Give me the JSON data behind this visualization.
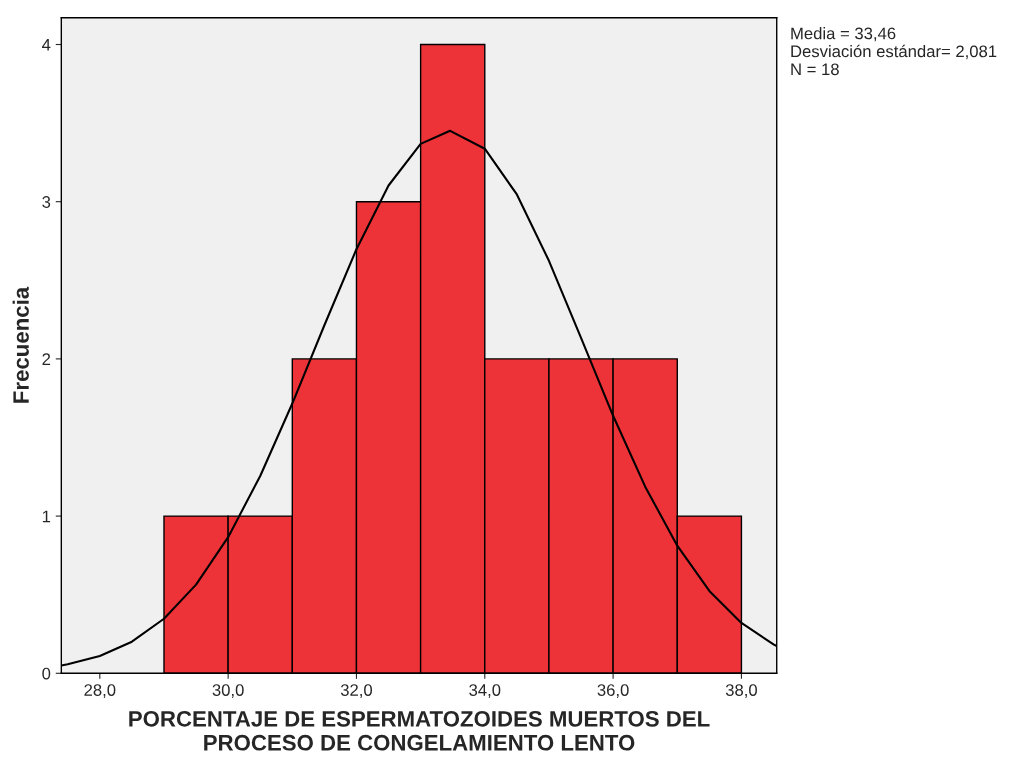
{
  "chart_data": {
    "type": "histogram",
    "xlabel": "PORCENTAJE DE ESPERMATOZOIDES MUERTOS DEL\nPROCESO DE CONGELAMIENTO LENTO",
    "ylabel": "Frecuencia",
    "annotations": [
      "Media = 33,46\nDesviación estándar= 2,081\nN = 18"
    ],
    "series": [
      {
        "bins": [
          29,
          30,
          31,
          32,
          33,
          34,
          35,
          36,
          37,
          38
        ],
        "values": [
          1,
          1,
          2,
          3,
          4,
          2,
          2,
          2,
          1
        ],
        "color": "#ee3338"
      },
      {
        "type": "line",
        "color": "#000000",
        "x": [
          27.4,
          27.5,
          28.0,
          28.5,
          29.0,
          29.5,
          30.0,
          30.5,
          31.0,
          31.5,
          32.0,
          32.5,
          33.0,
          33.46,
          34.0,
          34.5,
          35.0,
          35.5,
          36.0,
          36.5,
          37.0,
          37.5,
          38.0,
          38.5,
          38.55
        ],
        "values": [
          0.05,
          0.057,
          0.11,
          0.201,
          0.347,
          0.564,
          0.866,
          1.255,
          1.716,
          2.214,
          2.698,
          3.103,
          3.368,
          3.451,
          3.337,
          3.046,
          2.624,
          2.134,
          1.638,
          1.187,
          0.812,
          0.524,
          0.32,
          0.184,
          0.173
        ]
      }
    ],
    "xlim": [
      27.4,
      38.55
    ],
    "xticks": [
      {
        "value": 28,
        "label": "28,0"
      },
      {
        "value": 30,
        "label": "30,0"
      },
      {
        "value": 32,
        "label": "32,0"
      },
      {
        "value": 34,
        "label": "34,0"
      },
      {
        "value": 36,
        "label": "36,0"
      },
      {
        "value": 38,
        "label": "38,0"
      }
    ],
    "ylim": [
      0,
      4.17
    ],
    "yticks": [
      0,
      1,
      2,
      3,
      4
    ],
    "grid": false,
    "legend": false
  }
}
